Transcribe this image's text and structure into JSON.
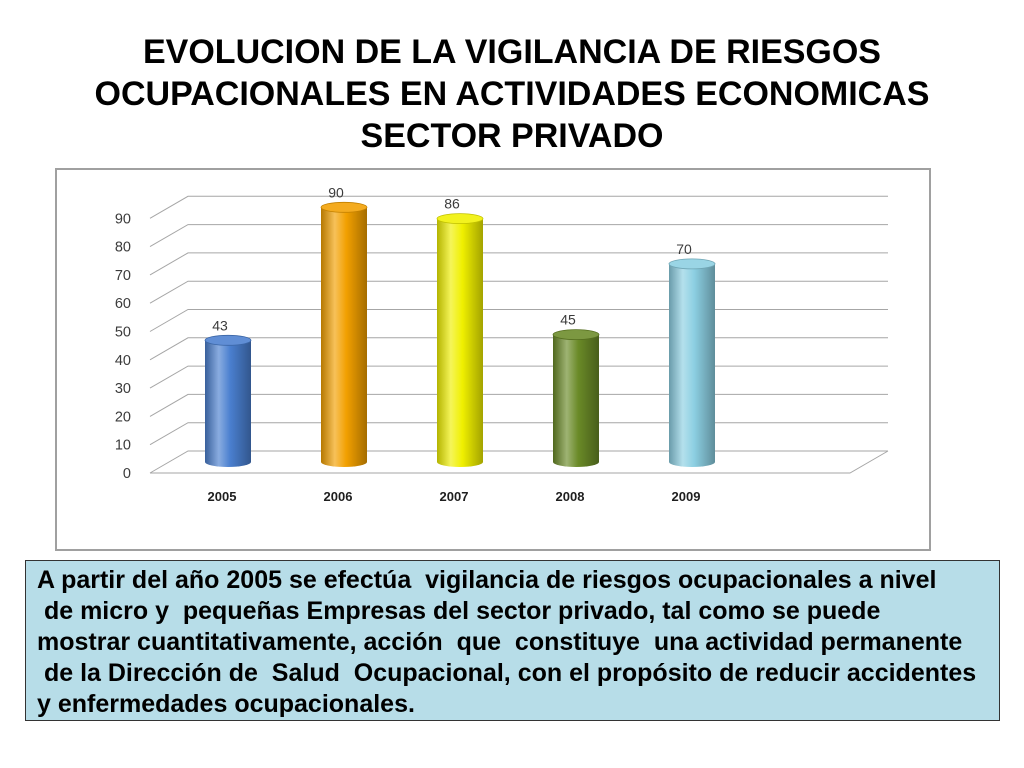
{
  "slide": {
    "title_lines": [
      "EVOLUCION DE LA VIGILANCIA DE RIESGOS",
      "OCUPACIONALES EN ACTIVIDADES ECONOMICAS",
      "SECTOR PRIVADO"
    ],
    "body_lines": [
      "A partir del año 2005 se efectúa  vigilancia de riesgos ocupacionales a nivel",
      " de micro y  pequeñas Empresas del sector privado, tal como se puede",
      "mostrar cuantitativamente, acción  que  constituye  una actividad permanente",
      " de la Dirección de  Salud  Ocupacional, con el propósito de reducir accidentes",
      "y enfermedades ocupacionales."
    ],
    "body_background": "#b7dde8"
  },
  "chart_data": {
    "type": "bar",
    "categories": [
      "2005",
      "2006",
      "2007",
      "2008",
      "2009"
    ],
    "values": [
      43,
      90,
      86,
      45,
      70
    ],
    "colors": [
      "#4a7fcf",
      "#f2a000",
      "#f0f000",
      "#6a8a27",
      "#8ccfe2"
    ],
    "ylim": [
      0,
      90
    ],
    "yticks": [
      0,
      10,
      20,
      30,
      40,
      50,
      60,
      70,
      80,
      90
    ],
    "grid": true
  }
}
